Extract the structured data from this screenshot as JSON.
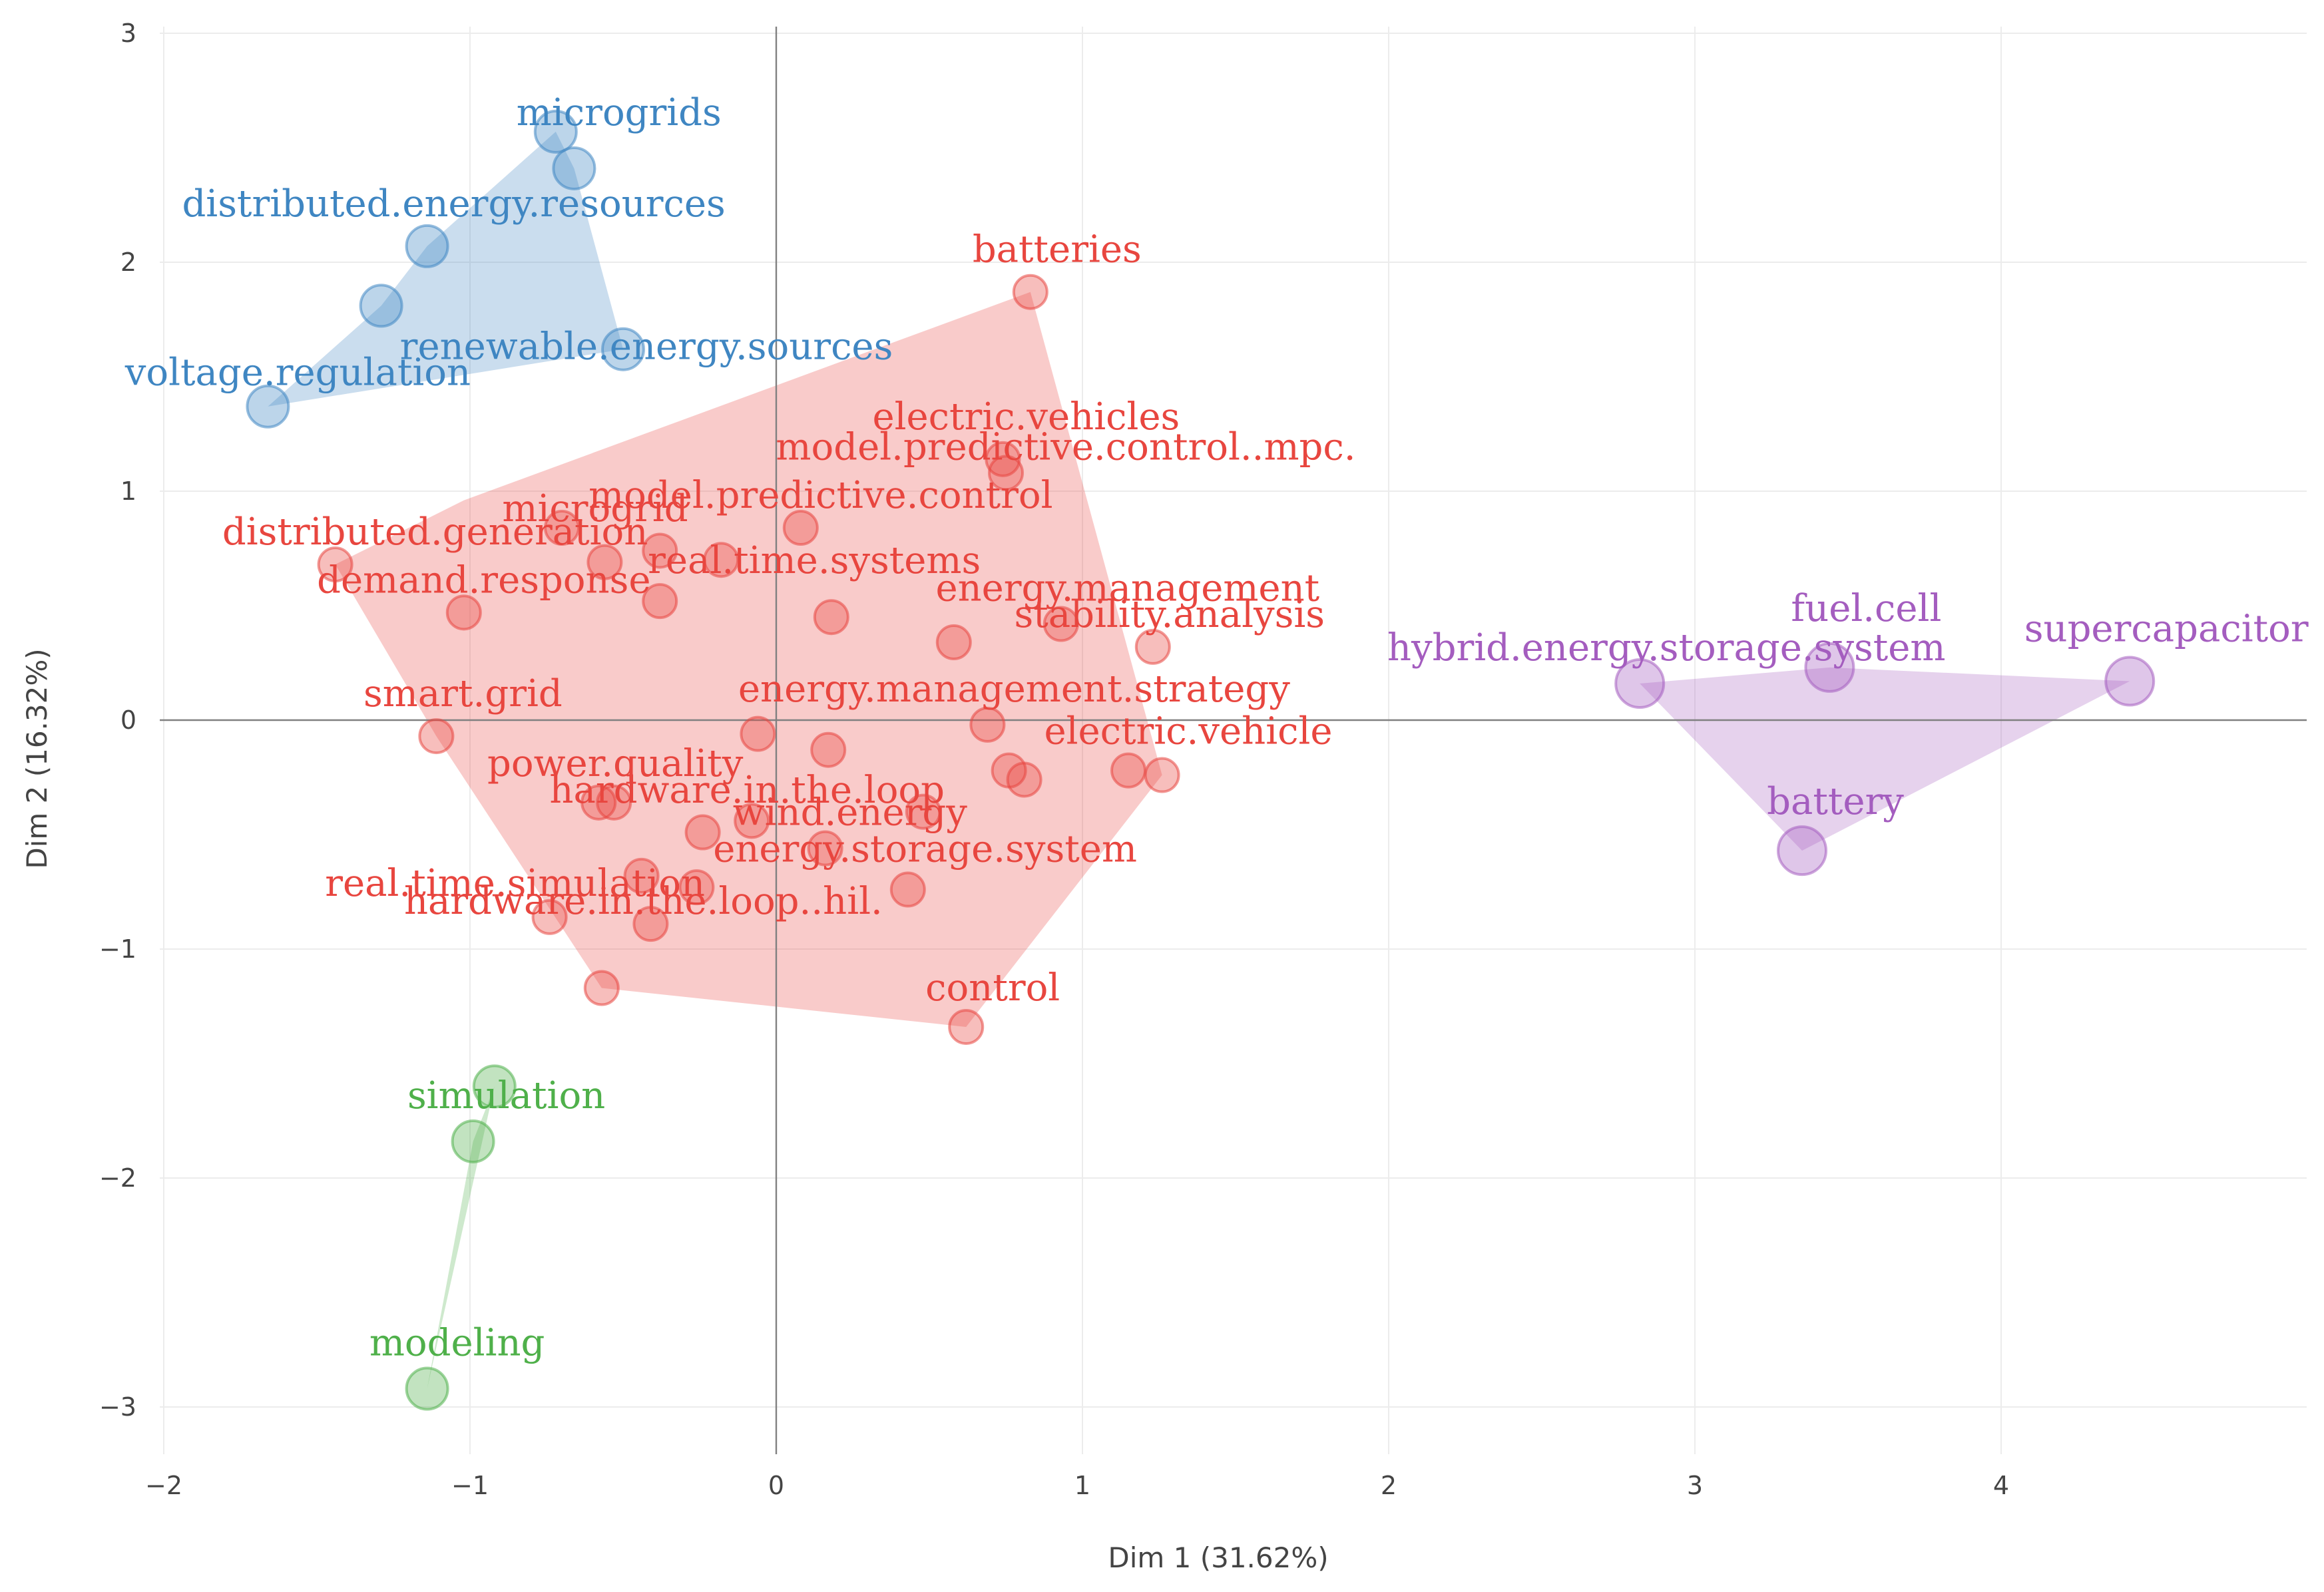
{
  "chart_data": {
    "type": "scatter",
    "title": "",
    "xlabel": "Dim 1 (31.62%)",
    "ylabel": "Dim 2 (16.32%)",
    "xlim": [
      -2.05,
      4.95
    ],
    "ylim": [
      -3.3,
      3.05
    ],
    "x_ticks": [
      -2,
      -1,
      0,
      1,
      2,
      3,
      4
    ],
    "y_ticks": [
      -3,
      -2,
      -1,
      0,
      1,
      2,
      3
    ],
    "x_tick_labels": [
      "−2",
      "−1",
      "0",
      "1",
      "2",
      "3",
      "4"
    ],
    "y_tick_labels": [
      "−3",
      "−2",
      "−1",
      "0",
      "1",
      "2",
      "3"
    ],
    "grid": true,
    "series": [
      {
        "name": "cluster-blue",
        "color": "#3f86c2",
        "points": [
          {
            "x": -0.72,
            "y": 2.57,
            "label": "microgrids"
          },
          {
            "x": -0.66,
            "y": 2.41,
            "label": ""
          },
          {
            "x": -1.14,
            "y": 2.07,
            "label": "distributed.energy.resources"
          },
          {
            "x": -1.29,
            "y": 1.81,
            "label": ""
          },
          {
            "x": -0.5,
            "y": 1.62,
            "label": "renewable.energy.sources"
          },
          {
            "x": -1.66,
            "y": 1.37,
            "label": "voltage.regulation"
          }
        ],
        "hull": [
          [
            -0.72,
            2.57
          ],
          [
            -0.66,
            2.41
          ],
          [
            -0.5,
            1.62
          ],
          [
            -1.66,
            1.37
          ],
          [
            -1.29,
            1.81
          ],
          [
            -1.14,
            2.07
          ]
        ]
      },
      {
        "name": "cluster-red",
        "color": "#e8463f",
        "points": [
          {
            "x": 0.83,
            "y": 1.87,
            "label": "batteries"
          },
          {
            "x": 0.74,
            "y": 1.14,
            "label": "electric.vehicles"
          },
          {
            "x": 0.75,
            "y": 1.08,
            "label": "model.predictive.control..mpc."
          },
          {
            "x": 0.08,
            "y": 0.84,
            "label": "model.predictive.control"
          },
          {
            "x": -0.7,
            "y": 0.84,
            "label": "microgrid"
          },
          {
            "x": -0.38,
            "y": 0.74,
            "label": ""
          },
          {
            "x": -0.18,
            "y": 0.7,
            "label": "real.time.systems"
          },
          {
            "x": -1.44,
            "y": 0.68,
            "label": "distributed.generation"
          },
          {
            "x": -0.56,
            "y": 0.69,
            "label": ""
          },
          {
            "x": -1.02,
            "y": 0.47,
            "label": "demand.response"
          },
          {
            "x": -0.38,
            "y": 0.52,
            "label": ""
          },
          {
            "x": 0.18,
            "y": 0.45,
            "label": ""
          },
          {
            "x": 0.58,
            "y": 0.34,
            "label": ""
          },
          {
            "x": 0.93,
            "y": 0.42,
            "label": "energy.management"
          },
          {
            "x": 1.23,
            "y": 0.32,
            "label": "stability.analysis"
          },
          {
            "x": -1.11,
            "y": -0.07,
            "label": "smart.grid"
          },
          {
            "x": -0.06,
            "y": -0.06,
            "label": ""
          },
          {
            "x": 0.17,
            "y": -0.13,
            "label": ""
          },
          {
            "x": 0.69,
            "y": -0.02,
            "label": "energy.management.strategy"
          },
          {
            "x": 1.15,
            "y": -0.22,
            "label": "electric.vehicle"
          },
          {
            "x": 1.26,
            "y": -0.24,
            "label": ""
          },
          {
            "x": 0.76,
            "y": -0.22,
            "label": ""
          },
          {
            "x": 0.81,
            "y": -0.26,
            "label": ""
          },
          {
            "x": -0.58,
            "y": -0.36,
            "label": "power.quality"
          },
          {
            "x": -0.53,
            "y": -0.36,
            "label": "hardware.in.the.loop"
          },
          {
            "x": 0.48,
            "y": -0.4,
            "label": "wind.energy"
          },
          {
            "x": -0.08,
            "y": -0.44,
            "label": ""
          },
          {
            "x": -0.24,
            "y": -0.49,
            "label": ""
          },
          {
            "x": 0.16,
            "y": -0.56,
            "label": "energy.storage.system"
          },
          {
            "x": -0.44,
            "y": -0.68,
            "label": "real.time.simulation"
          },
          {
            "x": -0.26,
            "y": -0.73,
            "label": "hardware.in.the.loop..hil."
          },
          {
            "x": 0.43,
            "y": -0.74,
            "label": ""
          },
          {
            "x": -0.74,
            "y": -0.86,
            "label": ""
          },
          {
            "x": -0.41,
            "y": -0.89,
            "label": ""
          },
          {
            "x": -0.57,
            "y": -1.17,
            "label": ""
          },
          {
            "x": 0.62,
            "y": -1.34,
            "label": "control"
          }
        ],
        "hull": [
          [
            0.83,
            1.87
          ],
          [
            1.26,
            -0.24
          ],
          [
            0.62,
            -1.34
          ],
          [
            -0.57,
            -1.17
          ],
          [
            -1.11,
            -0.07
          ],
          [
            -1.44,
            0.68
          ],
          [
            -1.02,
            0.96
          ]
        ]
      },
      {
        "name": "cluster-purple",
        "color": "#a45dbf",
        "points": [
          {
            "x": 2.82,
            "y": 0.16,
            "label": "hybrid.energy.storage.system"
          },
          {
            "x": 3.44,
            "y": 0.23,
            "label": "fuel.cell"
          },
          {
            "x": 4.42,
            "y": 0.17,
            "label": "supercapacitor"
          },
          {
            "x": 3.35,
            "y": -0.57,
            "label": "battery"
          }
        ],
        "hull": [
          [
            2.82,
            0.16
          ],
          [
            3.44,
            0.23
          ],
          [
            4.42,
            0.17
          ],
          [
            3.35,
            -0.57
          ]
        ]
      },
      {
        "name": "cluster-green",
        "color": "#4fb04a",
        "points": [
          {
            "x": -0.92,
            "y": -1.6,
            "label": ""
          },
          {
            "x": -0.99,
            "y": -1.84,
            "label": "simulation"
          },
          {
            "x": -1.14,
            "y": -2.92,
            "label": "modeling"
          }
        ],
        "hull": [
          [
            -0.92,
            -1.6
          ],
          [
            -0.99,
            -1.84
          ],
          [
            -1.14,
            -2.92
          ]
        ]
      }
    ]
  }
}
